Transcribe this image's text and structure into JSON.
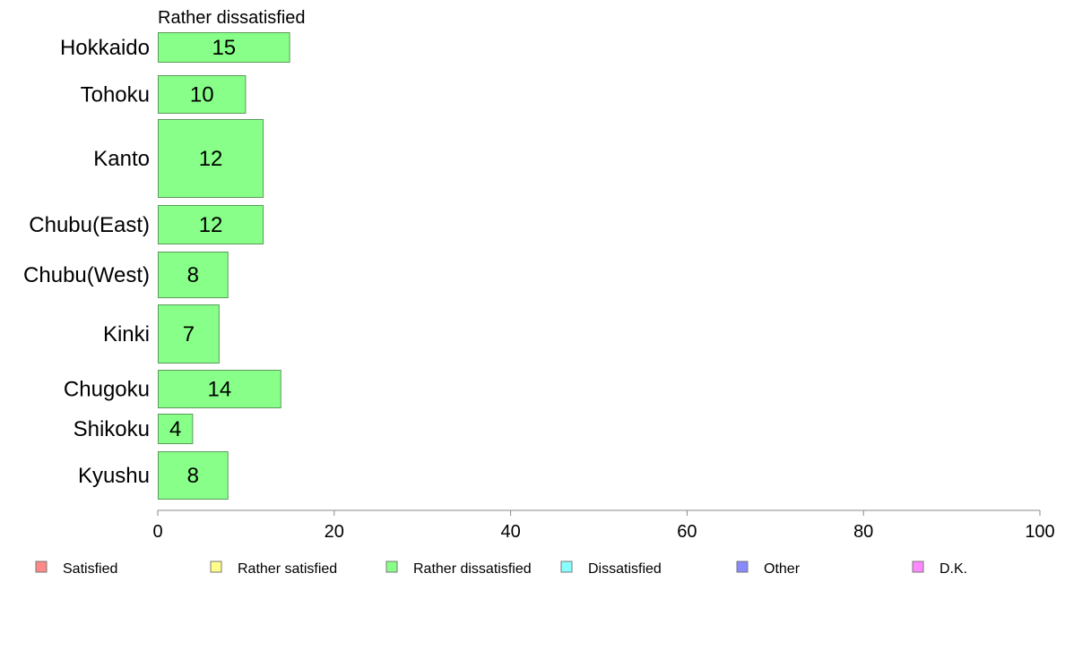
{
  "chart_data": {
    "type": "bar",
    "orientation": "horizontal",
    "title": "Rather dissatisfied",
    "categories": [
      "Hokkaido",
      "Tohoku",
      "Kanto",
      "Chubu(East)",
      "Chubu(West)",
      "Kinki",
      "Chugoku",
      "Shikoku",
      "Kyushu"
    ],
    "values": [
      15,
      10,
      12,
      12,
      8,
      7,
      14,
      4,
      8
    ],
    "xlim": [
      0,
      100
    ],
    "xticks": [
      "0",
      "20",
      "40",
      "60",
      "80",
      "100"
    ],
    "grid": false,
    "bar_color": "#88ff88",
    "bar_stroke": "#5a9a5a",
    "legend_position": "bottom",
    "legend": [
      {
        "label": "Satisfied",
        "color": "#ff8888"
      },
      {
        "label": "Rather satisfied",
        "color": "#ffff88"
      },
      {
        "label": "Rather dissatisfied",
        "color": "#88ff88"
      },
      {
        "label": "Dissatisfied",
        "color": "#88ffff"
      },
      {
        "label": "Other",
        "color": "#8888ff"
      },
      {
        "label": "D.K.",
        "color": "#ff88ff"
      }
    ]
  }
}
